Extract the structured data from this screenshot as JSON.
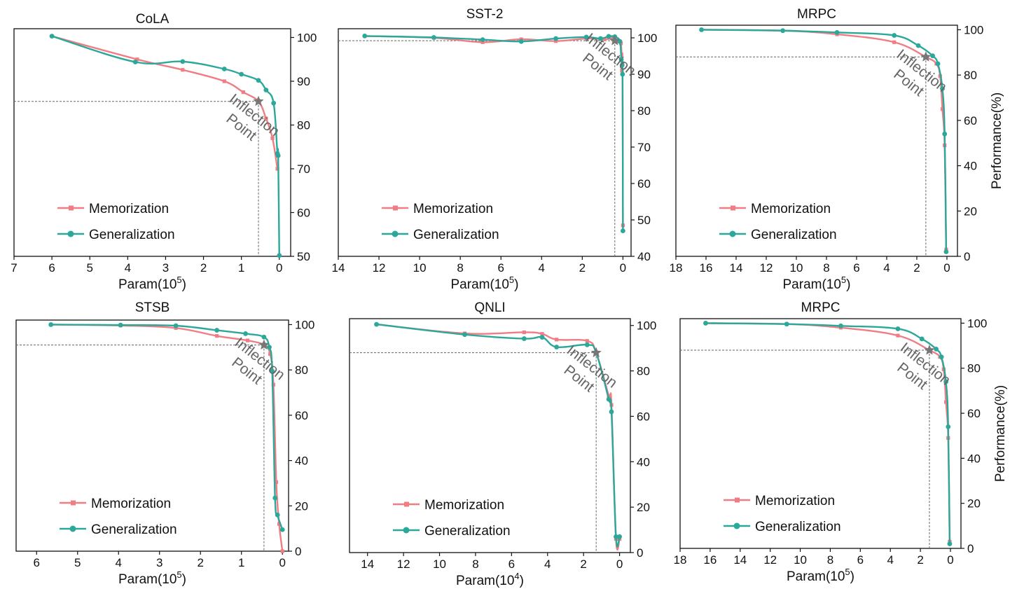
{
  "colors": {
    "memorization": "#F07C84",
    "generalization": "#2CA89A",
    "star": "#777777",
    "axis": "#111111"
  },
  "annotation": [
    "Inflection",
    "Point"
  ],
  "chart_data": [
    {
      "type": "line",
      "title": "CoLA",
      "xlabel": "Param(10",
      "xlabel_exp": "5",
      "ylabel": "",
      "x_reversed": true,
      "xlim": [
        7,
        -0.3
      ],
      "ylim": [
        50,
        102
      ],
      "xticks": [
        7,
        6,
        5,
        4,
        3,
        2,
        1,
        0
      ],
      "yticks": [
        50,
        60,
        70,
        80,
        90,
        100
      ],
      "legend": [
        "Memorization",
        "Generalization"
      ],
      "inflection": [
        0.55,
        85.4
      ],
      "series": [
        {
          "name": "Memorization",
          "x": [
            6.0,
            3.75,
            2.55,
            1.45,
            0.95,
            0.55,
            0.35,
            0.18,
            0.05
          ],
          "y": [
            100.3,
            95.0,
            92.6,
            90.0,
            87.5,
            85.4,
            81.5,
            77.0,
            70.0
          ]
        },
        {
          "name": "Generalization",
          "x": [
            6.0,
            3.8,
            2.55,
            1.45,
            1.0,
            0.55,
            0.35,
            0.15,
            0.05,
            0.03,
            0.0
          ],
          "y": [
            100.3,
            94.4,
            94.5,
            92.8,
            91.6,
            90.2,
            88.0,
            85.0,
            73.5,
            73.0,
            50.2
          ]
        }
      ]
    },
    {
      "type": "line",
      "title": "SST-2",
      "xlabel": "Param(10",
      "xlabel_exp": "5",
      "ylabel": "",
      "x_reversed": true,
      "xlim": [
        14,
        -0.4
      ],
      "ylim": [
        40,
        102.5
      ],
      "xticks": [
        14,
        12,
        10,
        8,
        6,
        4,
        2,
        0
      ],
      "yticks": [
        40,
        50,
        60,
        70,
        80,
        90,
        100
      ],
      "legend": [
        "Memorization",
        "Generalization"
      ],
      "inflection": [
        0.4,
        99.2
      ],
      "series": [
        {
          "name": "Memorization",
          "x": [
            12.7,
            9.3,
            6.9,
            5.0,
            3.3,
            1.8,
            0.9,
            0.5,
            0.3,
            0.1,
            0.05,
            0.02,
            0.0
          ],
          "y": [
            100.5,
            100.0,
            98.8,
            99.6,
            99.1,
            99.8,
            99.6,
            99.8,
            99.0,
            98.5,
            91.0,
            93.0,
            48.5
          ]
        },
        {
          "name": "Generalization",
          "x": [
            12.7,
            9.3,
            6.9,
            5.0,
            3.3,
            1.8,
            1.1,
            0.7,
            0.4,
            0.15,
            0.08,
            0.04,
            0.02,
            0.0
          ],
          "y": [
            100.5,
            100.1,
            99.5,
            99.0,
            99.8,
            100.2,
            99.8,
            100.4,
            100.3,
            99.0,
            94.0,
            92.5,
            90.0,
            47.0
          ]
        }
      ]
    },
    {
      "type": "line",
      "title": "MRPC",
      "xlabel": "Param(10",
      "xlabel_exp": "5",
      "ylabel": "Performance(%)",
      "x_reversed": true,
      "xlim": [
        18,
        -0.7
      ],
      "ylim": [
        0,
        102
      ],
      "xticks": [
        18,
        16,
        14,
        12,
        10,
        8,
        6,
        4,
        2,
        0
      ],
      "yticks": [
        0,
        20,
        40,
        60,
        80,
        100
      ],
      "legend": [
        "Memorization",
        "Generalization"
      ],
      "inflection": [
        1.4,
        88.0
      ],
      "series": [
        {
          "name": "Memorization",
          "x": [
            16.3,
            10.9,
            7.3,
            3.5,
            1.4,
            0.7,
            0.45,
            0.3,
            0.15,
            0.05
          ],
          "y": [
            100.0,
            99.6,
            98.0,
            94.5,
            88.0,
            85.0,
            79.5,
            65.0,
            49.0,
            3.0
          ]
        },
        {
          "name": "Generalization",
          "x": [
            16.3,
            10.9,
            7.3,
            3.5,
            1.9,
            0.95,
            0.6,
            0.3,
            0.15,
            0.05
          ],
          "y": [
            100.0,
            99.6,
            98.8,
            97.5,
            93.0,
            88.5,
            85.0,
            74.0,
            54.0,
            2.0
          ]
        }
      ]
    },
    {
      "type": "line",
      "title": "STSB",
      "xlabel": "Param(10",
      "xlabel_exp": "5",
      "ylabel": "",
      "x_reversed": true,
      "xlim": [
        6.5,
        -0.15
      ],
      "ylim": [
        0,
        102
      ],
      "xticks": [
        6,
        5,
        4,
        3,
        2,
        1,
        0
      ],
      "yticks": [
        0,
        20,
        40,
        60,
        80,
        100
      ],
      "legend": [
        "Memorization",
        "Generalization"
      ],
      "inflection": [
        0.45,
        91.0
      ],
      "series": [
        {
          "name": "Memorization",
          "x": [
            5.65,
            3.95,
            2.6,
            1.6,
            0.85,
            0.45,
            0.3,
            0.22,
            0.15,
            0.08,
            0.0
          ],
          "y": [
            100.0,
            99.6,
            98.5,
            95.0,
            93.0,
            91.0,
            87.0,
            73.5,
            30.5,
            12.0,
            0.0
          ]
        },
        {
          "name": "Generalization",
          "x": [
            5.65,
            3.95,
            2.6,
            1.6,
            0.9,
            0.45,
            0.32,
            0.25,
            0.18,
            0.12,
            0.0
          ],
          "y": [
            100.0,
            99.8,
            99.5,
            97.5,
            96.0,
            94.5,
            90.0,
            79.5,
            23.5,
            16.0,
            9.5
          ]
        }
      ]
    },
    {
      "type": "line",
      "title": "QNLI",
      "xlabel": "Param(10",
      "xlabel_exp": "4",
      "ylabel": "",
      "x_reversed": true,
      "xlim": [
        15,
        -0.6
      ],
      "ylim": [
        0,
        103
      ],
      "xticks": [
        14,
        12,
        10,
        8,
        6,
        4,
        2,
        0
      ],
      "yticks": [
        0,
        20,
        40,
        60,
        80,
        100
      ],
      "legend": [
        "Memorization",
        "Generalization"
      ],
      "inflection": [
        1.3,
        88.0
      ],
      "series": [
        {
          "name": "Memorization",
          "x": [
            13.5,
            8.6,
            5.3,
            4.3,
            3.5,
            1.8,
            1.3,
            0.6,
            0.45,
            0.2,
            0.0
          ],
          "y": [
            100.5,
            96.5,
            97.0,
            96.3,
            93.8,
            93.2,
            88.0,
            69.0,
            65.0,
            6.0,
            6.0
          ]
        },
        {
          "name": "Generalization",
          "x": [
            13.5,
            8.6,
            5.3,
            4.3,
            3.5,
            1.8,
            1.3,
            0.6,
            0.45,
            0.2,
            0.0
          ],
          "y": [
            100.5,
            96.0,
            94.2,
            94.8,
            90.5,
            91.5,
            88.0,
            67.5,
            62.0,
            7.0,
            7.0
          ]
        }
      ]
    },
    {
      "type": "line",
      "title": "MRPC",
      "xlabel": "Param(10",
      "xlabel_exp": "5",
      "ylabel": "Performance(%)",
      "x_reversed": true,
      "xlim": [
        18,
        -0.7
      ],
      "ylim": [
        0,
        102
      ],
      "xticks": [
        18,
        16,
        14,
        12,
        10,
        8,
        6,
        4,
        2,
        0
      ],
      "yticks": [
        0,
        20,
        40,
        60,
        80,
        100
      ],
      "legend": [
        "Memorization",
        "Generalization"
      ],
      "inflection": [
        1.4,
        88.0
      ],
      "series": [
        {
          "name": "Memorization",
          "x": [
            16.3,
            10.9,
            7.3,
            3.5,
            1.4,
            0.7,
            0.45,
            0.3,
            0.15,
            0.05
          ],
          "y": [
            100.0,
            99.6,
            98.0,
            94.5,
            88.0,
            85.0,
            79.5,
            65.0,
            49.0,
            3.0
          ]
        },
        {
          "name": "Generalization",
          "x": [
            16.3,
            10.9,
            7.3,
            3.5,
            1.9,
            0.95,
            0.6,
            0.3,
            0.15,
            0.05
          ],
          "y": [
            100.0,
            99.6,
            98.8,
            97.5,
            93.0,
            88.5,
            85.0,
            74.0,
            54.0,
            2.0
          ]
        }
      ]
    }
  ]
}
